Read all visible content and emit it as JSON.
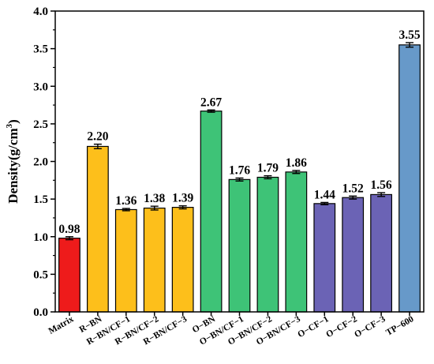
{
  "chart_data": {
    "type": "bar",
    "title": "",
    "xlabel": "",
    "ylabel": "Density(g/cm",
    "ylabel_sup": "3",
    "ylabel_close": ")",
    "ylim": [
      0,
      4.0
    ],
    "yticks": [
      "0.0",
      "0.5",
      "1.0",
      "1.5",
      "2.0",
      "2.5",
      "3.0",
      "3.5",
      "4.0"
    ],
    "grid": false,
    "categories": [
      "Matrix",
      "R−BN",
      "R−BN/CF−1",
      "R−BN/CF−2",
      "R−BN/CF−3",
      "O−BN",
      "O−BN/CF−1",
      "O−BN/CF−2",
      "O−BN/CF−3",
      "O−CF−1",
      "O−CF−2",
      "O−CF−3",
      "TP−600"
    ],
    "values": [
      0.98,
      2.2,
      1.36,
      1.38,
      1.39,
      2.67,
      1.76,
      1.79,
      1.86,
      1.44,
      1.52,
      1.56,
      3.55
    ],
    "value_labels": [
      "0.98",
      "2.20",
      "1.36",
      "1.38",
      "1.39",
      "2.67",
      "1.76",
      "1.79",
      "1.86",
      "1.44",
      "1.52",
      "1.56",
      "3.55"
    ],
    "errors": [
      0.02,
      0.03,
      0.015,
      0.025,
      0.02,
      0.015,
      0.02,
      0.02,
      0.02,
      0.015,
      0.02,
      0.025,
      0.03
    ],
    "colors": [
      "#ee1b1b",
      "#fdbf1b",
      "#fdbf1b",
      "#fdbf1b",
      "#fdbf1b",
      "#3ec377",
      "#3ec377",
      "#3ec377",
      "#3ec377",
      "#6b63b5",
      "#6b63b5",
      "#6b63b5",
      "#6799c9"
    ]
  }
}
